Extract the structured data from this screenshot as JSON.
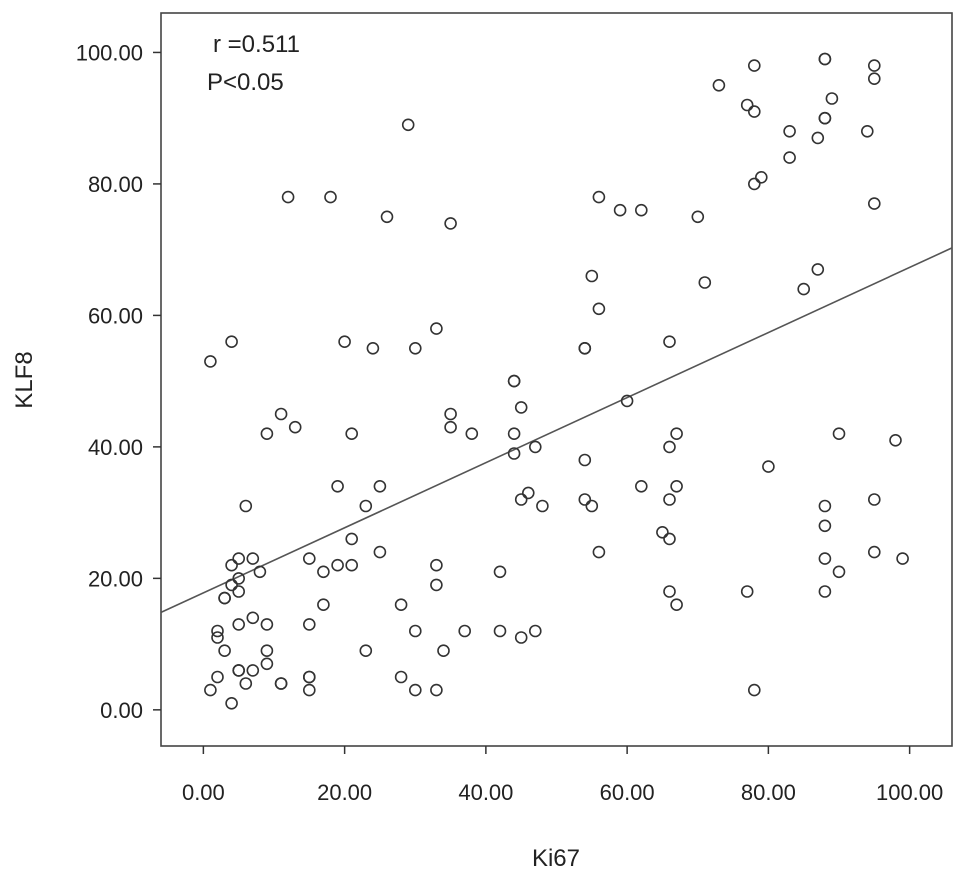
{
  "chart_data": {
    "type": "scatter",
    "xlabel": "Ki67",
    "ylabel": "KLF8",
    "xlim": [
      -6,
      106
    ],
    "ylim": [
      -5.5,
      106
    ],
    "xticks": [
      "0.00",
      "20.00",
      "40.00",
      "60.00",
      "80.00",
      "100.00"
    ],
    "yticks": [
      "0.00",
      "20.00",
      "40.00",
      "60.00",
      "80.00",
      "100.00"
    ],
    "grid": false,
    "annotations": [
      "r =0.511",
      "P<0.05"
    ],
    "fit_line": {
      "intercept": 17.8,
      "slope": 0.495
    },
    "points": [
      [
        1,
        53
      ],
      [
        4,
        56
      ],
      [
        1,
        3
      ],
      [
        2,
        5
      ],
      [
        2,
        11
      ],
      [
        2,
        12
      ],
      [
        3,
        9
      ],
      [
        3,
        17
      ],
      [
        3,
        17
      ],
      [
        4,
        1
      ],
      [
        4,
        19
      ],
      [
        4,
        22
      ],
      [
        5,
        6
      ],
      [
        5,
        6
      ],
      [
        5,
        13
      ],
      [
        5,
        18
      ],
      [
        5,
        20
      ],
      [
        5,
        23
      ],
      [
        6,
        4
      ],
      [
        6,
        31
      ],
      [
        7,
        6
      ],
      [
        7,
        14
      ],
      [
        7,
        23
      ],
      [
        8,
        21
      ],
      [
        9,
        7
      ],
      [
        9,
        9
      ],
      [
        9,
        13
      ],
      [
        9,
        42
      ],
      [
        11,
        4
      ],
      [
        11,
        4
      ],
      [
        11,
        45
      ],
      [
        12,
        78
      ],
      [
        13,
        43
      ],
      [
        15,
        3
      ],
      [
        15,
        5
      ],
      [
        15,
        5
      ],
      [
        15,
        13
      ],
      [
        15,
        23
      ],
      [
        17,
        16
      ],
      [
        17,
        21
      ],
      [
        18,
        78
      ],
      [
        19,
        22
      ],
      [
        19,
        34
      ],
      [
        20,
        56
      ],
      [
        21,
        22
      ],
      [
        21,
        26
      ],
      [
        21,
        42
      ],
      [
        23,
        9
      ],
      [
        23,
        31
      ],
      [
        24,
        55
      ],
      [
        25,
        24
      ],
      [
        25,
        34
      ],
      [
        26,
        75
      ],
      [
        28,
        5
      ],
      [
        28,
        16
      ],
      [
        29,
        89
      ],
      [
        30,
        3
      ],
      [
        30,
        12
      ],
      [
        30,
        55
      ],
      [
        33,
        3
      ],
      [
        33,
        19
      ],
      [
        33,
        22
      ],
      [
        33,
        58
      ],
      [
        34,
        9
      ],
      [
        35,
        43
      ],
      [
        35,
        45
      ],
      [
        35,
        74
      ],
      [
        37,
        12
      ],
      [
        38,
        42
      ],
      [
        42,
        12
      ],
      [
        42,
        21
      ],
      [
        44,
        39
      ],
      [
        44,
        42
      ],
      [
        44,
        50
      ],
      [
        44,
        50
      ],
      [
        45,
        11
      ],
      [
        45,
        32
      ],
      [
        45,
        46
      ],
      [
        46,
        33
      ],
      [
        47,
        12
      ],
      [
        47,
        40
      ],
      [
        48,
        31
      ],
      [
        54,
        32
      ],
      [
        54,
        38
      ],
      [
        54,
        55
      ],
      [
        54,
        55
      ],
      [
        55,
        31
      ],
      [
        55,
        66
      ],
      [
        56,
        24
      ],
      [
        56,
        61
      ],
      [
        56,
        78
      ],
      [
        59,
        76
      ],
      [
        60,
        47
      ],
      [
        62,
        34
      ],
      [
        62,
        76
      ],
      [
        65,
        27
      ],
      [
        66,
        18
      ],
      [
        66,
        26
      ],
      [
        66,
        32
      ],
      [
        66,
        40
      ],
      [
        66,
        56
      ],
      [
        67,
        16
      ],
      [
        67,
        34
      ],
      [
        67,
        42
      ],
      [
        70,
        75
      ],
      [
        71,
        65
      ],
      [
        73,
        95
      ],
      [
        77,
        18
      ],
      [
        77,
        92
      ],
      [
        78,
        3
      ],
      [
        78,
        80
      ],
      [
        78,
        91
      ],
      [
        78,
        98
      ],
      [
        79,
        81
      ],
      [
        80,
        37
      ],
      [
        83,
        84
      ],
      [
        83,
        88
      ],
      [
        85,
        64
      ],
      [
        87,
        67
      ],
      [
        87,
        87
      ],
      [
        88,
        18
      ],
      [
        88,
        23
      ],
      [
        88,
        28
      ],
      [
        88,
        31
      ],
      [
        88,
        90
      ],
      [
        88,
        90
      ],
      [
        88,
        99
      ],
      [
        88,
        99
      ],
      [
        89,
        93
      ],
      [
        90,
        21
      ],
      [
        90,
        42
      ],
      [
        94,
        88
      ],
      [
        95,
        24
      ],
      [
        95,
        32
      ],
      [
        95,
        77
      ],
      [
        95,
        96
      ],
      [
        95,
        98
      ],
      [
        98,
        41
      ],
      [
        99,
        23
      ]
    ]
  }
}
